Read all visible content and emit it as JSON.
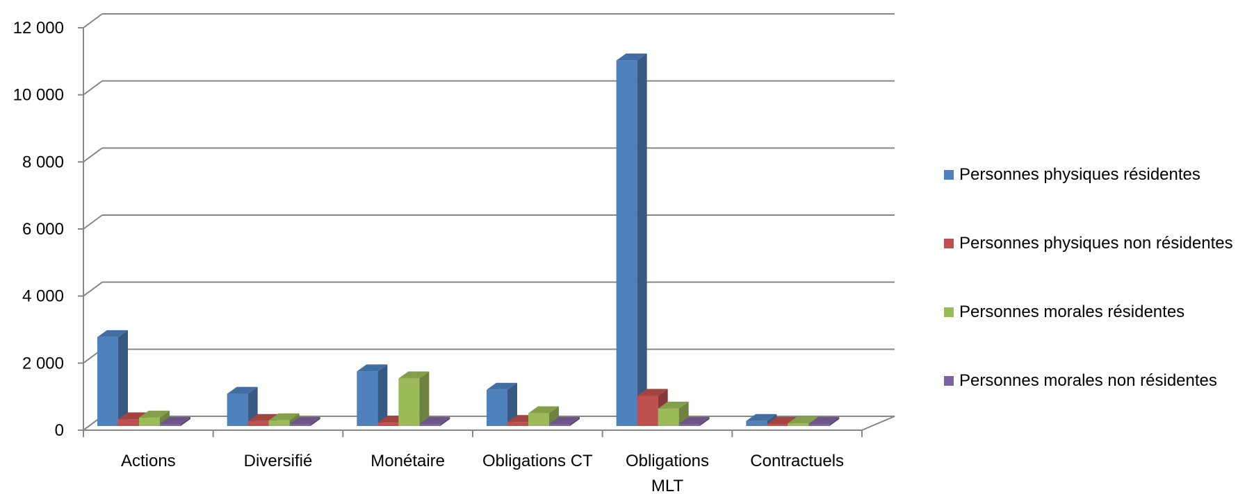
{
  "chart_data": {
    "type": "bar",
    "style": "3d-clustered-column",
    "categories": [
      [
        "Actions"
      ],
      [
        "Diversifié"
      ],
      [
        "Monétaire"
      ],
      [
        "Obligations CT"
      ],
      [
        "Obligations",
        "MLT"
      ],
      [
        "Contractuels"
      ]
    ],
    "series": [
      {
        "name": "Personnes physiques résidentes",
        "color": "#4F81BD",
        "values": [
          2650,
          960,
          1630,
          1080,
          10900,
          150
        ]
      },
      {
        "name": "Personnes physiques non résidentes",
        "color": "#C0504D",
        "values": [
          200,
          150,
          100,
          120,
          900,
          40
        ]
      },
      {
        "name": "Personnes morales résidentes",
        "color": "#9BBB59",
        "values": [
          250,
          170,
          1420,
          380,
          520,
          80
        ]
      },
      {
        "name": "Personnes morales non résidentes",
        "color": "#8064A2",
        "values": [
          20,
          15,
          15,
          15,
          20,
          10
        ]
      }
    ],
    "yticks": [
      "0",
      "2 000",
      "4 000",
      "6 000",
      "8 000",
      "10 000",
      "12 000"
    ],
    "ylim": [
      0,
      12000
    ],
    "grid": true,
    "legend_position": "right"
  }
}
